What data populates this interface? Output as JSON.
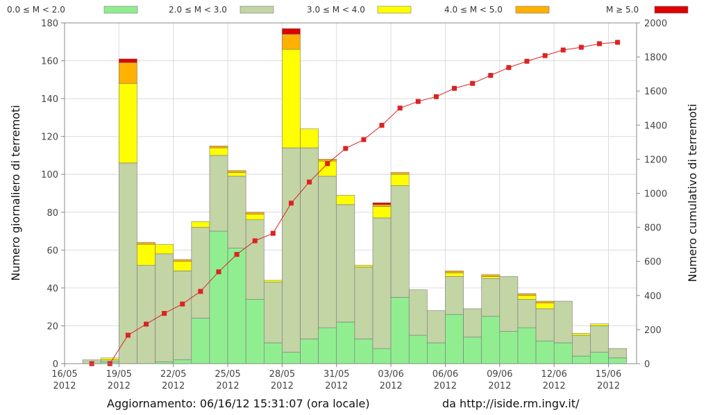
{
  "chart_data": {
    "type": "bar",
    "stacked": true,
    "ylabel": "Numero giornaliero di terremoti",
    "y2label": "Numero cumulativo di terremoti",
    "ylim": [
      0,
      180
    ],
    "y2lim": [
      0,
      2000
    ],
    "yticks": [
      0,
      20,
      40,
      60,
      80,
      100,
      120,
      140,
      160,
      180
    ],
    "y2ticks": [
      0,
      200,
      400,
      600,
      800,
      1000,
      1200,
      1400,
      1600,
      1800,
      2000
    ],
    "grid": true,
    "legend_position": "top",
    "x_start": "2012-05-16",
    "x_end": "2012-06-16",
    "x_ticks": [
      {
        "date": "2012-05-16",
        "line1": "16/05",
        "line2": "2012"
      },
      {
        "date": "2012-05-19",
        "line1": "19/05",
        "line2": "2012"
      },
      {
        "date": "2012-05-22",
        "line1": "22/05",
        "line2": "2012"
      },
      {
        "date": "2012-05-25",
        "line1": "25/05",
        "line2": "2012"
      },
      {
        "date": "2012-05-28",
        "line1": "28/05",
        "line2": "2012"
      },
      {
        "date": "2012-05-31",
        "line1": "31/05",
        "line2": "2012"
      },
      {
        "date": "2012-06-03",
        "line1": "03/06",
        "line2": "2012"
      },
      {
        "date": "2012-06-06",
        "line1": "06/06",
        "line2": "2012"
      },
      {
        "date": "2012-06-09",
        "line1": "09/06",
        "line2": "2012"
      },
      {
        "date": "2012-06-12",
        "line1": "12/06",
        "line2": "2012"
      },
      {
        "date": "2012-06-15",
        "line1": "15/06",
        "line2": "2012"
      }
    ],
    "categories": [
      "2012-05-17",
      "2012-05-18",
      "2012-05-19",
      "2012-05-20",
      "2012-05-21",
      "2012-05-22",
      "2012-05-23",
      "2012-05-24",
      "2012-05-25",
      "2012-05-26",
      "2012-05-27",
      "2012-05-28",
      "2012-05-29",
      "2012-05-30",
      "2012-05-31",
      "2012-06-01",
      "2012-06-02",
      "2012-06-03",
      "2012-06-04",
      "2012-06-05",
      "2012-06-06",
      "2012-06-07",
      "2012-06-08",
      "2012-06-09",
      "2012-06-10",
      "2012-06-11",
      "2012-06-12",
      "2012-06-13",
      "2012-06-14",
      "2012-06-15",
      "2012-06-16"
    ],
    "series": [
      {
        "name": "0.0 ≤ M < 2.0",
        "color": "#90ee90",
        "values": [
          0,
          1,
          0,
          0,
          1,
          2,
          24,
          70,
          61,
          34,
          11,
          6,
          13,
          19,
          22,
          13,
          8,
          35,
          15,
          11,
          26,
          14,
          25,
          17,
          19,
          12,
          11,
          4,
          6,
          3,
          0
        ]
      },
      {
        "name": "2.0 ≤ M < 3.0",
        "color": "#c3d4a5",
        "values": [
          2,
          1,
          106,
          52,
          57,
          47,
          48,
          40,
          38,
          42,
          32,
          108,
          101,
          80,
          62,
          38,
          69,
          59,
          24,
          17,
          20,
          15,
          20,
          29,
          15,
          17,
          22,
          11,
          14,
          5,
          0
        ]
      },
      {
        "name": "3.0 ≤ M < 4.0",
        "color": "#ffff00",
        "values": [
          0,
          1,
          42,
          11,
          5,
          5,
          3,
          4,
          2,
          3,
          1,
          52,
          10,
          8,
          5,
          1,
          6,
          6,
          0,
          0,
          2,
          0,
          1,
          0,
          2,
          3,
          0,
          1,
          1,
          0,
          0
        ]
      },
      {
        "name": "4.0 ≤ M < 5.0",
        "color": "#ffb000",
        "values": [
          0,
          0,
          11,
          1,
          0,
          1,
          0,
          1,
          1,
          1,
          0,
          8,
          0,
          1,
          0,
          0,
          1,
          1,
          0,
          0,
          1,
          0,
          1,
          0,
          1,
          1,
          0,
          0,
          0,
          0,
          0
        ]
      },
      {
        "name": "M ≥ 5.0",
        "color": "#dd0000",
        "values": [
          0,
          0,
          2,
          0,
          0,
          0,
          0,
          0,
          0,
          0,
          0,
          3,
          0,
          0,
          0,
          0,
          1,
          0,
          0,
          0,
          0,
          0,
          0,
          0,
          0,
          0,
          0,
          0,
          0,
          0,
          0
        ]
      }
    ],
    "cumulative": {
      "color": "#dd2222",
      "points": [
        {
          "date": "2012-05-17",
          "value": 0
        },
        {
          "date": "2012-05-18",
          "value": 0
        },
        {
          "date": "2012-05-19",
          "value": 167
        },
        {
          "date": "2012-05-20",
          "value": 232
        },
        {
          "date": "2012-05-21",
          "value": 295
        },
        {
          "date": "2012-05-22",
          "value": 350
        },
        {
          "date": "2012-05-23",
          "value": 424
        },
        {
          "date": "2012-05-24",
          "value": 539
        },
        {
          "date": "2012-05-25",
          "value": 641
        },
        {
          "date": "2012-05-26",
          "value": 721
        },
        {
          "date": "2012-05-27",
          "value": 765
        },
        {
          "date": "2012-05-28",
          "value": 942
        },
        {
          "date": "2012-05-29",
          "value": 1066
        },
        {
          "date": "2012-05-30",
          "value": 1174
        },
        {
          "date": "2012-05-31",
          "value": 1263
        },
        {
          "date": "2012-06-01",
          "value": 1315
        },
        {
          "date": "2012-06-02",
          "value": 1399
        },
        {
          "date": "2012-06-03",
          "value": 1500
        },
        {
          "date": "2012-06-04",
          "value": 1539
        },
        {
          "date": "2012-06-05",
          "value": 1567
        },
        {
          "date": "2012-06-06",
          "value": 1616
        },
        {
          "date": "2012-06-07",
          "value": 1645
        },
        {
          "date": "2012-06-08",
          "value": 1692
        },
        {
          "date": "2012-06-09",
          "value": 1738
        },
        {
          "date": "2012-06-10",
          "value": 1775
        },
        {
          "date": "2012-06-11",
          "value": 1808
        },
        {
          "date": "2012-06-12",
          "value": 1841
        },
        {
          "date": "2012-06-13",
          "value": 1857
        },
        {
          "date": "2012-06-14",
          "value": 1878
        },
        {
          "date": "2012-06-15",
          "value": 1886
        }
      ]
    }
  },
  "footer": {
    "update_text": "Aggiornamento: 06/16/12 15:31:07 (ora locale)",
    "source_text": "da http://iside.rm.ingv.it/"
  }
}
